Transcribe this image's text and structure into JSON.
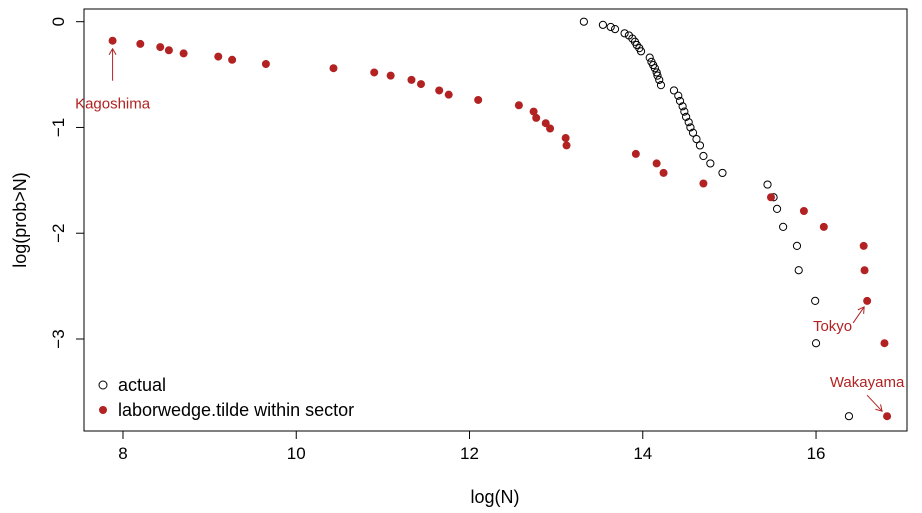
{
  "chart_data": {
    "type": "scatter",
    "title": "",
    "xlabel": "log(N)",
    "ylabel": "log(prob>N)",
    "xlim": [
      7.55,
      17.05
    ],
    "ylim": [
      -3.87,
      0.12
    ],
    "xticks": [
      8,
      10,
      12,
      14,
      16
    ],
    "yticks": [
      0,
      -1,
      -2,
      -3
    ],
    "grid": false,
    "legend_position": "bottom-left",
    "colors": {
      "accent": "#b22222",
      "open": "#000000"
    },
    "series": [
      {
        "name": "actual",
        "marker": "open-circle",
        "color": "#000000",
        "points": [
          [
            13.32,
            0.0
          ],
          [
            13.54,
            -0.03
          ],
          [
            13.63,
            -0.05
          ],
          [
            13.68,
            -0.07
          ],
          [
            13.79,
            -0.11
          ],
          [
            13.84,
            -0.13
          ],
          [
            13.88,
            -0.16
          ],
          [
            13.91,
            -0.19
          ],
          [
            13.93,
            -0.22
          ],
          [
            13.96,
            -0.25
          ],
          [
            13.98,
            -0.28
          ],
          [
            14.08,
            -0.34
          ],
          [
            14.1,
            -0.38
          ],
          [
            14.12,
            -0.41
          ],
          [
            14.14,
            -0.44
          ],
          [
            14.16,
            -0.48
          ],
          [
            14.17,
            -0.51
          ],
          [
            14.19,
            -0.55
          ],
          [
            14.21,
            -0.6
          ],
          [
            14.36,
            -0.65
          ],
          [
            14.41,
            -0.7
          ],
          [
            14.43,
            -0.75
          ],
          [
            14.46,
            -0.8
          ],
          [
            14.48,
            -0.85
          ],
          [
            14.5,
            -0.9
          ],
          [
            14.53,
            -0.95
          ],
          [
            14.55,
            -1.0
          ],
          [
            14.58,
            -1.05
          ],
          [
            14.62,
            -1.11
          ],
          [
            14.66,
            -1.17
          ],
          [
            14.7,
            -1.27
          ],
          [
            14.78,
            -1.34
          ],
          [
            14.92,
            -1.43
          ],
          [
            15.44,
            -1.54
          ],
          [
            15.51,
            -1.66
          ],
          [
            15.55,
            -1.77
          ],
          [
            15.62,
            -1.94
          ],
          [
            15.78,
            -2.12
          ],
          [
            15.8,
            -2.35
          ],
          [
            15.99,
            -2.64
          ],
          [
            16.0,
            -3.04
          ],
          [
            16.38,
            -3.73
          ]
        ]
      },
      {
        "name": "laborwedge.tilde within sector",
        "marker": "filled-circle",
        "color": "#b22222",
        "points": [
          [
            7.88,
            -0.18
          ],
          [
            8.2,
            -0.21
          ],
          [
            8.43,
            -0.24
          ],
          [
            8.53,
            -0.27
          ],
          [
            8.7,
            -0.3
          ],
          [
            9.1,
            -0.33
          ],
          [
            9.26,
            -0.36
          ],
          [
            9.65,
            -0.4
          ],
          [
            10.43,
            -0.44
          ],
          [
            10.9,
            -0.48
          ],
          [
            11.09,
            -0.51
          ],
          [
            11.33,
            -0.55
          ],
          [
            11.44,
            -0.59
          ],
          [
            11.65,
            -0.65
          ],
          [
            11.76,
            -0.69
          ],
          [
            12.1,
            -0.74
          ],
          [
            12.57,
            -0.79
          ],
          [
            12.74,
            -0.85
          ],
          [
            12.77,
            -0.91
          ],
          [
            12.88,
            -0.96
          ],
          [
            12.93,
            -1.01
          ],
          [
            13.11,
            -1.1
          ],
          [
            13.12,
            -1.17
          ],
          [
            13.92,
            -1.25
          ],
          [
            14.16,
            -1.34
          ],
          [
            14.24,
            -1.43
          ],
          [
            14.7,
            -1.53
          ],
          [
            15.48,
            -1.66
          ],
          [
            15.86,
            -1.79
          ],
          [
            16.09,
            -1.94
          ],
          [
            16.55,
            -2.12
          ],
          [
            16.56,
            -2.35
          ],
          [
            16.59,
            -2.64
          ],
          [
            16.79,
            -3.04
          ],
          [
            16.82,
            -3.73
          ]
        ]
      }
    ],
    "annotations": [
      {
        "text": "Kagoshima",
        "point": [
          7.88,
          -0.18
        ],
        "arrow": "up",
        "placement": "below"
      },
      {
        "text": "Tokyo",
        "point": [
          16.59,
          -2.64
        ],
        "arrow": "up-right",
        "placement": "left"
      },
      {
        "text": "Wakayama",
        "point": [
          16.82,
          -3.73
        ],
        "arrow": "down-right",
        "placement": "above-left"
      }
    ]
  }
}
